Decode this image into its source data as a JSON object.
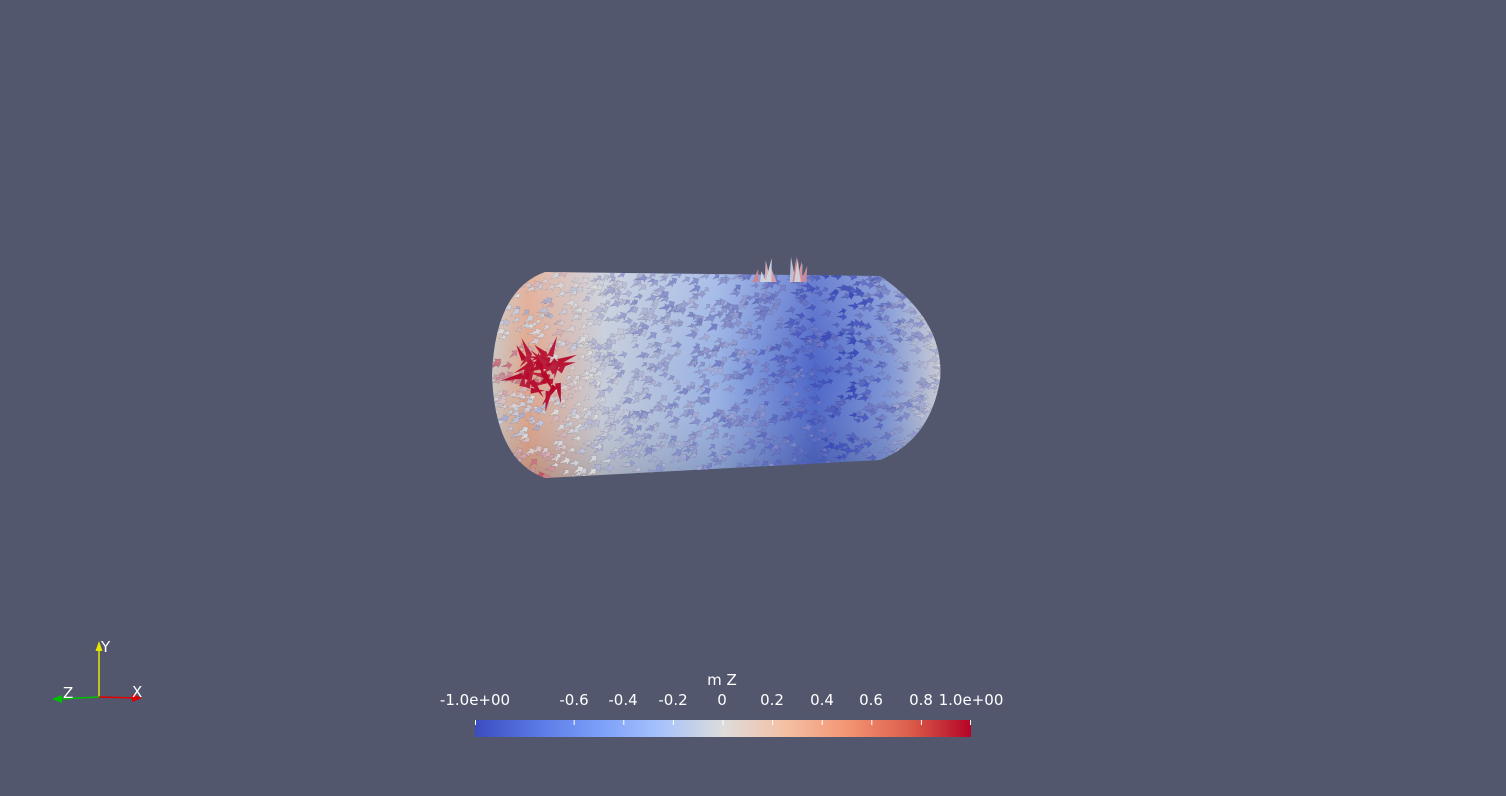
{
  "scene": {
    "background_color": "#52576e",
    "object": "cylindrical glyph field (arrows) colored by mZ"
  },
  "colorbar": {
    "title": "m Z",
    "labels": [
      "-1.0e+00",
      "-0.6",
      "-0.4",
      "-0.2",
      "0",
      "0.2",
      "0.4",
      "0.6",
      "0.8",
      "1.0e+00"
    ],
    "tick_values": [
      -1.0,
      -0.6,
      -0.4,
      -0.2,
      0,
      0.2,
      0.4,
      0.6,
      0.8,
      1.0
    ],
    "range": [
      -1.0,
      1.0
    ],
    "colormap": "coolwarm",
    "color_low": "#3b4cc0",
    "color_mid": "#dddddd",
    "color_high": "#b40426"
  },
  "axes_triad": {
    "x_label": "X",
    "y_label": "Y",
    "z_label": "Z",
    "x_color": "#e00000",
    "y_color": "#e6e600",
    "z_color": "#00c000"
  }
}
